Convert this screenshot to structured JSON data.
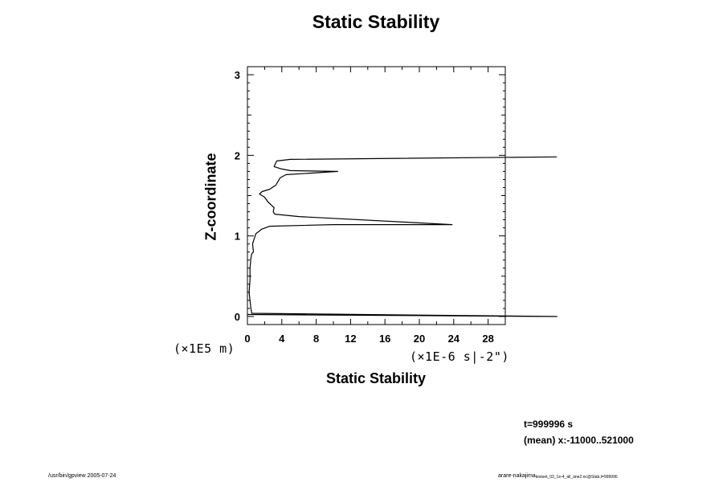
{
  "title": "Static Stability",
  "footer": {
    "left": "/usr/bin/gpview 2005-07-24",
    "right_main": "arare-nakajima",
    "right_sub": "testset_03_1e-4_all_ane2.nc@Stab,t=999996"
  },
  "info": {
    "time": "t=999996 s",
    "mean": "(mean) x:-11000..521000"
  },
  "chart_data": {
    "type": "line",
    "title": "Static Stability",
    "xlabel": "Static Stability",
    "ylabel": "Z-coordinate",
    "x_unit": "(×1E-6 s|-2\")",
    "y_unit": "(×1E5 m)",
    "xlim": [
      0,
      30
    ],
    "ylim": [
      -0.1,
      3.1
    ],
    "xticks": [
      0,
      4,
      8,
      12,
      16,
      20,
      24,
      28
    ],
    "yticks": [
      0,
      1,
      2,
      3
    ],
    "grid": false,
    "series": [
      {
        "x": [
          0,
          36,
          0.5,
          0.4,
          0.3,
          0.2,
          0.3,
          0.3,
          0.4,
          0.5,
          0.7,
          0.6,
          0.8,
          1.0,
          1.4,
          1.6,
          2.6,
          10.0,
          23.8,
          6.0,
          3.2,
          3.0,
          3.1,
          2.4,
          2.0,
          1.4,
          1.7,
          2.6,
          3.3,
          3.8,
          4.5,
          10.5,
          5.0,
          4.0,
          3.1,
          3.4,
          5.0,
          36
        ],
        "y": [
          0.025,
          0.0,
          0.04,
          0.1,
          0.2,
          0.3,
          0.45,
          0.6,
          0.72,
          0.78,
          0.8,
          0.9,
          0.97,
          1.03,
          1.06,
          1.08,
          1.12,
          1.14,
          1.14,
          1.24,
          1.27,
          1.3,
          1.35,
          1.42,
          1.48,
          1.52,
          1.55,
          1.58,
          1.63,
          1.72,
          1.76,
          1.8,
          1.81,
          1.83,
          1.86,
          1.93,
          1.95,
          1.98
        ]
      }
    ]
  }
}
